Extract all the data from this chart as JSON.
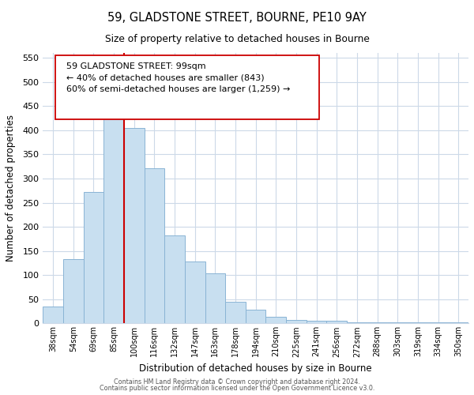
{
  "title": "59, GLADSTONE STREET, BOURNE, PE10 9AY",
  "subtitle": "Size of property relative to detached houses in Bourne",
  "xlabel": "Distribution of detached houses by size in Bourne",
  "ylabel": "Number of detached properties",
  "bar_labels": [
    "38sqm",
    "54sqm",
    "69sqm",
    "85sqm",
    "100sqm",
    "116sqm",
    "132sqm",
    "147sqm",
    "163sqm",
    "178sqm",
    "194sqm",
    "210sqm",
    "225sqm",
    "241sqm",
    "256sqm",
    "272sqm",
    "288sqm",
    "303sqm",
    "319sqm",
    "334sqm",
    "350sqm"
  ],
  "bar_values": [
    35,
    133,
    272,
    432,
    405,
    322,
    183,
    128,
    104,
    45,
    28,
    14,
    8,
    5,
    5,
    3,
    3,
    2,
    2,
    2,
    3
  ],
  "bar_color": "#c8dff0",
  "bar_edge_color": "#8ab4d4",
  "vline_x": 3.5,
  "vline_color": "#cc0000",
  "ylim": [
    0,
    560
  ],
  "yticks": [
    0,
    50,
    100,
    150,
    200,
    250,
    300,
    350,
    400,
    450,
    500,
    550
  ],
  "annotation_box_text_line1": "59 GLADSTONE STREET: 99sqm",
  "annotation_box_text_line2": "← 40% of detached houses are smaller (843)",
  "annotation_box_text_line3": "60% of semi-detached houses are larger (1,259) →",
  "footer_line1": "Contains HM Land Registry data © Crown copyright and database right 2024.",
  "footer_line2": "Contains public sector information licensed under the Open Government Licence v3.0.",
  "background_color": "#ffffff",
  "grid_color": "#ccd9e8"
}
